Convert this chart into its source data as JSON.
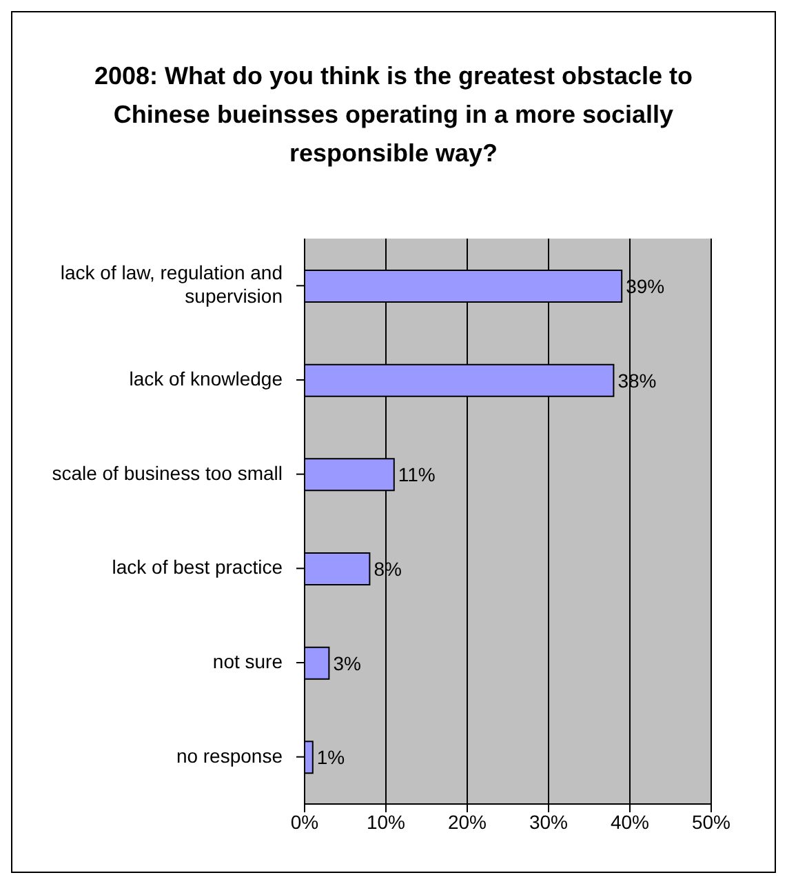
{
  "chart_data": {
    "type": "bar",
    "orientation": "horizontal",
    "title": "2008: What do you think is the greatest obstacle to Chinese bueinsses operating in a more socially responsible way?",
    "categories": [
      "lack of law, regulation and supervision",
      "lack of knowledge",
      "scale of business too small",
      "lack of best practice",
      "not sure",
      "no response"
    ],
    "values": [
      39,
      38,
      11,
      8,
      3,
      1
    ],
    "value_labels": [
      "39%",
      "38%",
      "11%",
      "8%",
      "3%",
      "1%"
    ],
    "color": "#9999ff",
    "xlim": [
      0,
      50
    ],
    "xticks": [
      {
        "value": 0,
        "label": "0%"
      },
      {
        "value": 10,
        "label": "10%"
      },
      {
        "value": 20,
        "label": "20%"
      },
      {
        "value": 30,
        "label": "30%"
      },
      {
        "value": 40,
        "label": "40%"
      },
      {
        "value": 50,
        "label": "50%"
      }
    ],
    "grid": "x"
  }
}
